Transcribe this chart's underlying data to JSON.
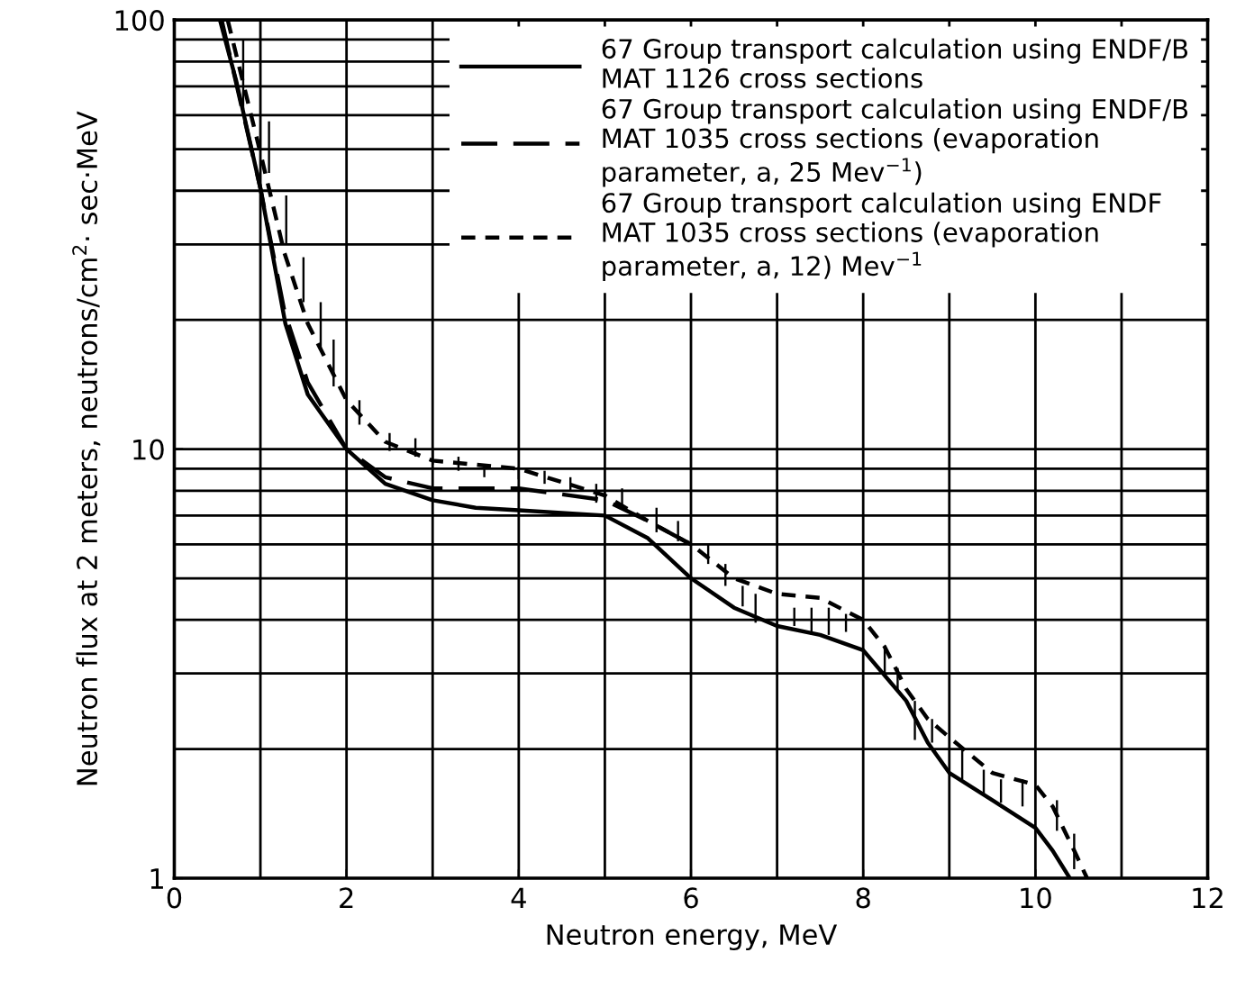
{
  "chart_data": {
    "type": "line",
    "xlabel": "Neutron energy, MeV",
    "ylabel": "Neutron flux at 2 meters, neutrons/cm$^{2}$· sec·MeV",
    "log": "y",
    "xlim": [
      0,
      12
    ],
    "xticks": [
      0,
      2,
      4,
      6,
      8,
      10,
      12
    ],
    "ylim": [
      1,
      100
    ],
    "yticks": [
      1,
      10,
      100
    ],
    "grid": true,
    "legend": "top right",
    "series": [
      {
        "name": "67 Group transport calculation using ENDF/B\nMAT 1126 cross sections",
        "color": "#000000",
        "line_style": "solid",
        "x": [
          0.53,
          0.72,
          1.0,
          1.29,
          1.55,
          2.0,
          2.45,
          3.0,
          3.5,
          4.0,
          5.0,
          5.5,
          6.0,
          6.5,
          7.0,
          7.5,
          8.0,
          8.5,
          8.75,
          9.0,
          9.5,
          10.0,
          10.2,
          10.4
        ],
        "values": [
          100,
          72,
          40.5,
          19.6,
          13.4,
          10,
          8.3,
          7.6,
          7.3,
          7.2,
          7.0,
          6.2,
          5.0,
          4.27,
          3.87,
          3.69,
          3.4,
          2.59,
          2.07,
          1.76,
          1.52,
          1.31,
          1.16,
          1.0
        ]
      },
      {
        "name": "67 Group transport calculation using ENDF/B\nMAT 1035 cross sections (evaporation\nparameter, a, 25 Mev$^{−1}$)",
        "color": "#000000",
        "line_style": "dashed",
        "x": [
          0.55,
          1.0,
          1.28,
          1.55,
          2.0,
          2.45,
          3.0,
          4.0,
          5.0,
          5.5,
          6.0
        ],
        "values": [
          100,
          40.5,
          20.9,
          14.3,
          10,
          8.6,
          8.1,
          8.1,
          7.6,
          6.8,
          6.0
        ]
      },
      {
        "name": "67 Group transport calculation using ENDF\nMAT 1035 cross sections (evaporation\nparameter, a, 12) Mev$^{−1}$",
        "color": "#000000",
        "line_style": "dotted",
        "x": [
          0.62,
          1.0,
          1.28,
          1.55,
          2.0,
          2.45,
          3.0,
          4.0,
          5.0,
          5.5,
          6.0,
          6.5,
          7.0,
          7.5,
          8.0,
          8.25,
          8.5,
          8.75,
          9.0,
          9.5,
          10.0,
          10.2,
          10.45,
          10.6
        ],
        "values": [
          100,
          49,
          28.6,
          19.6,
          13.0,
          10.4,
          9.4,
          9.0,
          7.8,
          6.8,
          6.0,
          5.0,
          4.6,
          4.5,
          4.0,
          3.46,
          2.76,
          2.35,
          2.13,
          1.76,
          1.65,
          1.47,
          1.16,
          1.0
        ]
      },
      {
        "type": "bar",
        "color": "#000000",
        "x": [
          0.8,
          1.1,
          1.3,
          1.5,
          1.7,
          1.85,
          2.15,
          2.5,
          2.8,
          3.0,
          3.3,
          3.6,
          4.0,
          4.3,
          4.6,
          4.9,
          5.2,
          5.6,
          5.85,
          6.2,
          6.4,
          6.6,
          6.75,
          7.2,
          7.4,
          7.6,
          7.8,
          8.25,
          8.4,
          8.6,
          8.8,
          9.15,
          9.4,
          9.6,
          9.85,
          10.25,
          10.45
        ],
        "base": [
          62,
          44,
          30,
          22,
          17,
          14,
          11.4,
          9.9,
          9.6,
          9.2,
          8.9,
          8.6,
          8.5,
          8.3,
          8.0,
          7.5,
          7.4,
          6.4,
          6.1,
          5.4,
          4.8,
          4.3,
          3.94,
          3.87,
          3.69,
          3.69,
          3.75,
          2.95,
          2.72,
          2.1,
          2.07,
          1.7,
          1.57,
          1.5,
          1.47,
          1.29,
          1.05
        ],
        "values": [
          28,
          14,
          9,
          6,
          5,
          4,
          1.6,
          1.0,
          1.0,
          0.8,
          0.7,
          0.6,
          0.6,
          0.6,
          0.6,
          0.8,
          0.7,
          0.9,
          0.7,
          0.6,
          0.6,
          0.5,
          0.66,
          0.4,
          0.58,
          0.58,
          0.38,
          0.51,
          0.37,
          0.49,
          0.28,
          0.3,
          0.22,
          0.2,
          0.23,
          0.23,
          0.22
        ]
      }
    ]
  }
}
